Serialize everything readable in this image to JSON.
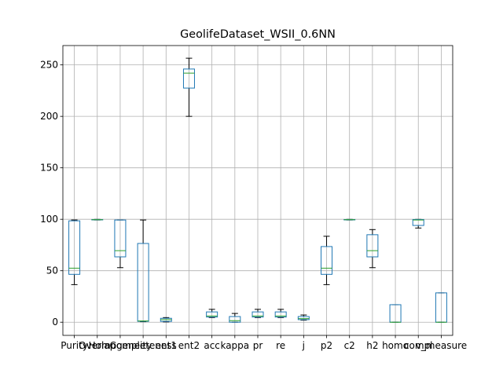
{
  "chart_data": {
    "type": "box",
    "title": "GeolifeDataset_WSII_0.6NN",
    "xlabel": "",
    "ylabel": "",
    "ylim": [
      -12.8,
      268.8
    ],
    "yticks": [
      0,
      50,
      100,
      150,
      200,
      250
    ],
    "ytick_labels": [
      "0",
      "50",
      "100",
      "150",
      "200",
      "250"
    ],
    "grid": true,
    "categories": [
      "Purity",
      "Overlap",
      "Homogeneity",
      "Completeness",
      "ent1",
      "ent2",
      "acc",
      "kappa",
      "pr",
      "re",
      "j",
      "p2",
      "c2",
      "h2",
      "homo",
      "compl",
      "v_measure"
    ],
    "x_tick_labels": [
      "Purity",
      "Overlap",
      "Homogeneity",
      "Completeness",
      "ent1",
      "ent2",
      "acc",
      "kappa",
      "pr",
      "re",
      "j",
      "p2",
      "c2",
      "h2",
      "homo",
      "compl",
      "v_measure"
    ],
    "boxes": [
      {
        "name": "Purity",
        "whislo": 36.5,
        "q1": 46.5,
        "med": 52.5,
        "q3": 98.5,
        "whishi": 99.3
      },
      {
        "name": "Overlap",
        "whislo": 99.3,
        "q1": 99.4,
        "med": 99.6,
        "q3": 99.8,
        "whishi": 99.9
      },
      {
        "name": "Homogeneity",
        "whislo": 53,
        "q1": 63.5,
        "med": 69.5,
        "q3": 99.3,
        "whishi": 99.3
      },
      {
        "name": "Completeness",
        "whislo": 0.5,
        "q1": 0.8,
        "med": 1.2,
        "q3": 76.5,
        "whishi": 99.3
      },
      {
        "name": "ent1",
        "whislo": 0.3,
        "q1": 0.8,
        "med": 2.5,
        "q3": 3.8,
        "whishi": 4.5
      },
      {
        "name": "ent2",
        "whislo": 200,
        "q1": 227.5,
        "med": 242,
        "q3": 246,
        "whishi": 256.5
      },
      {
        "name": "acc",
        "whislo": 4.5,
        "q1": 5.0,
        "med": 6.0,
        "q3": 10.0,
        "whishi": 12.5
      },
      {
        "name": "kappa",
        "whislo": 0,
        "q1": 0,
        "med": 1.5,
        "q3": 5.5,
        "whishi": 8.5
      },
      {
        "name": "pr",
        "whislo": 4.5,
        "q1": 5.0,
        "med": 6.0,
        "q3": 10.0,
        "whishi": 12.5
      },
      {
        "name": "re",
        "whislo": 4.5,
        "q1": 5.0,
        "med": 6.0,
        "q3": 10.0,
        "whishi": 12.5
      },
      {
        "name": "j",
        "whislo": 2.0,
        "q1": 2.5,
        "med": 3.5,
        "q3": 5.5,
        "whishi": 7.0
      },
      {
        "name": "p2",
        "whislo": 36.5,
        "q1": 46.5,
        "med": 52.5,
        "q3": 73.5,
        "whishi": 83.5
      },
      {
        "name": "c2",
        "whislo": 99.3,
        "q1": 99.4,
        "med": 99.6,
        "q3": 99.8,
        "whishi": 99.9
      },
      {
        "name": "h2",
        "whislo": 53,
        "q1": 63.5,
        "med": 69.5,
        "q3": 85.0,
        "whishi": 90.0
      },
      {
        "name": "homo",
        "whislo": 0,
        "q1": 0,
        "med": 0,
        "q3": 17.0,
        "whishi": 17.0
      },
      {
        "name": "compl",
        "whislo": 91.5,
        "q1": 94.0,
        "med": 99.3,
        "q3": 99.8,
        "whishi": 99.9
      },
      {
        "name": "v_measure",
        "whislo": 0,
        "q1": 0,
        "med": 0,
        "q3": 28.5,
        "whishi": 28.5
      }
    ],
    "colors": {
      "box": "#1f77b4",
      "median": "#2ca02c",
      "whisker": "#000000",
      "grid": "#b0b0b0",
      "axes": "#000000"
    }
  }
}
